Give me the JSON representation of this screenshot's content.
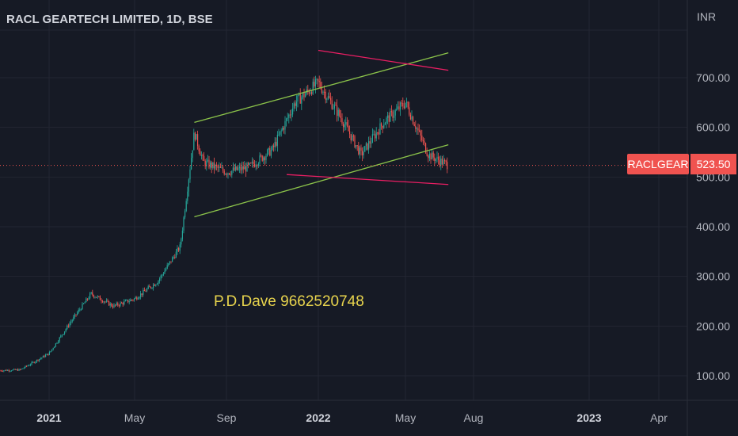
{
  "header": {
    "title": "RACL GEARTECH LIMITED, 1D, BSE",
    "currency": "INR"
  },
  "annotation": "P.D.Dave 9662520748",
  "price_tag": {
    "symbol": "RACLGEAR",
    "price": "523.50",
    "color": "#f05350"
  },
  "colors": {
    "background": "#161a25",
    "up": "#26a69a",
    "down": "#ef5350",
    "channel": "#8bc34a",
    "wedge": "#e91e63",
    "annotation": "#e8d44d"
  },
  "chart_data": {
    "type": "candlestick",
    "title": "RACL GEARTECH LIMITED, 1D, BSE",
    "y_unit": "INR",
    "y_ticks": [
      "100.00",
      "200.00",
      "300.00",
      "400.00",
      "500.00",
      "600.00",
      "700.00"
    ],
    "x_ticks": [
      "2021",
      "May",
      "Sep",
      "2022",
      "May",
      "Aug",
      "2023",
      "Apr"
    ],
    "ylim": [
      40,
      810
    ],
    "grid": true,
    "approx_closing_path": [
      [
        "2020-11",
        110
      ],
      [
        "2020-12",
        112
      ],
      [
        "2021-01",
        145
      ],
      [
        "2021-02",
        210
      ],
      [
        "2021-03",
        265
      ],
      [
        "2021-04",
        240
      ],
      [
        "2021-05",
        255
      ],
      [
        "2021-06",
        290
      ],
      [
        "2021-07",
        360
      ],
      [
        "2021-07-20",
        590
      ],
      [
        "2021-08",
        530
      ],
      [
        "2021-09",
        510
      ],
      [
        "2021-10",
        520
      ],
      [
        "2021-11",
        555
      ],
      [
        "2021-12",
        650
      ],
      [
        "2022-01",
        690
      ],
      [
        "2022-02",
        620
      ],
      [
        "2022-03",
        545
      ],
      [
        "2022-04",
        610
      ],
      [
        "2022-05",
        650
      ],
      [
        "2022-06",
        545
      ],
      [
        "2022-06-28",
        523.5
      ]
    ],
    "trend_lines": [
      {
        "color": "green",
        "from": [
          "2021-07-20",
          610
        ],
        "to": [
          "2022-06-28",
          750
        ]
      },
      {
        "color": "green",
        "from": [
          "2021-07-20",
          420
        ],
        "to": [
          "2022-06-28",
          565
        ]
      },
      {
        "color": "pink",
        "from": [
          "2022-01-01",
          755
        ],
        "to": [
          "2022-06-28",
          715
        ]
      },
      {
        "color": "pink",
        "from": [
          "2021-11-20",
          505
        ],
        "to": [
          "2022-06-28",
          485
        ]
      }
    ],
    "last_price": 523.5
  }
}
